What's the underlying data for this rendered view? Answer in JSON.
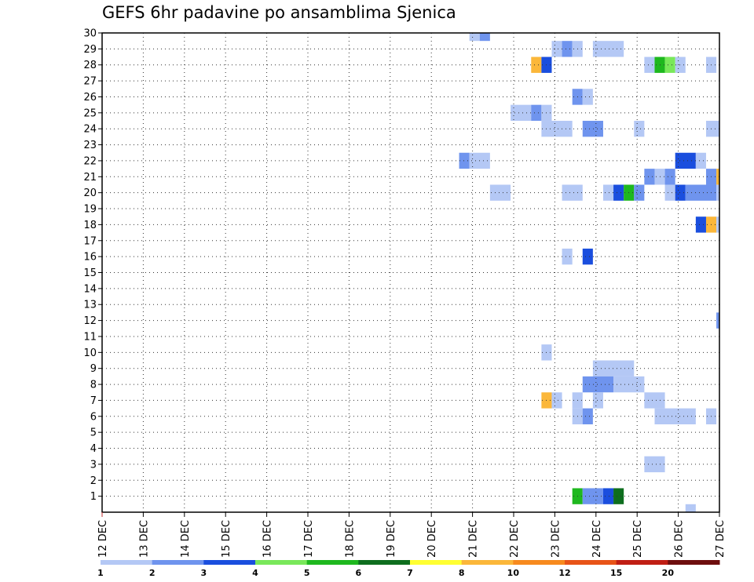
{
  "chart_data": {
    "type": "heatmap",
    "title": "GEFS 6hr padavine po ansamblima Sjenica",
    "xlabel": "",
    "ylabel": "",
    "x_tick_labels": [
      "12 DEC",
      "13 DEC",
      "14 DEC",
      "15 DEC",
      "16 DEC",
      "17 DEC",
      "18 DEC",
      "19 DEC",
      "20 DEC",
      "21 DEC",
      "22 DEC",
      "23 DEC",
      "24 DEC",
      "25 DEC",
      "26 DEC",
      "27 DEC"
    ],
    "x_unit": "6-hour steps from 12 DEC 00Z",
    "xlim": [
      0,
      60
    ],
    "y_tick_labels": [
      "1",
      "2",
      "3",
      "4",
      "5",
      "6",
      "7",
      "8",
      "9",
      "10",
      "11",
      "12",
      "13",
      "14",
      "15",
      "16",
      "17",
      "18",
      "19",
      "20",
      "21",
      "22",
      "23",
      "24",
      "25",
      "26",
      "27",
      "28",
      "29",
      "30"
    ],
    "ylim": [
      0,
      30
    ],
    "grid": "dotted",
    "colorbar": {
      "labels": [
        "1",
        "2",
        "3",
        "4",
        "5",
        "6",
        "7",
        "8",
        "10",
        "12",
        "15",
        "20"
      ],
      "colors": [
        "#b4c8f5",
        "#6f94ee",
        "#1a4ede",
        "#79e85a",
        "#1eb81e",
        "#0e6e1e",
        "#ffff32",
        "#fbb73a",
        "#f78a1e",
        "#e85418",
        "#c01e14",
        "#6e0e0e"
      ]
    },
    "cells": [
      {
        "member": 30,
        "start": 35.7,
        "end": 36.7,
        "color": "#b4c8f5"
      },
      {
        "member": 30,
        "start": 36.7,
        "end": 37.7,
        "color": "#6f94ee"
      },
      {
        "member": 29,
        "start": 43.7,
        "end": 44.7,
        "color": "#b4c8f5"
      },
      {
        "member": 29,
        "start": 44.7,
        "end": 45.7,
        "color": "#6f94ee"
      },
      {
        "member": 29,
        "start": 45.7,
        "end": 46.7,
        "color": "#b4c8f5"
      },
      {
        "member": 29,
        "start": 47.7,
        "end": 50.7,
        "color": "#b4c8f5"
      },
      {
        "member": 28,
        "start": 41.7,
        "end": 42.7,
        "color": "#fbb73a"
      },
      {
        "member": 28,
        "start": 42.7,
        "end": 43.7,
        "color": "#1a4ede"
      },
      {
        "member": 28,
        "start": 52.7,
        "end": 53.7,
        "color": "#b4c8f5"
      },
      {
        "member": 28,
        "start": 53.7,
        "end": 54.7,
        "color": "#1eb81e"
      },
      {
        "member": 28,
        "start": 54.7,
        "end": 55.7,
        "color": "#79e85a"
      },
      {
        "member": 28,
        "start": 55.7,
        "end": 56.7,
        "color": "#b4c8f5"
      },
      {
        "member": 28,
        "start": 58.7,
        "end": 59.7,
        "color": "#b4c8f5"
      },
      {
        "member": 26,
        "start": 45.7,
        "end": 46.7,
        "color": "#6f94ee"
      },
      {
        "member": 26,
        "start": 46.7,
        "end": 47.7,
        "color": "#b4c8f5"
      },
      {
        "member": 25,
        "start": 39.7,
        "end": 41.7,
        "color": "#b4c8f5"
      },
      {
        "member": 25,
        "start": 41.7,
        "end": 42.7,
        "color": "#6f94ee"
      },
      {
        "member": 25,
        "start": 42.7,
        "end": 43.7,
        "color": "#b4c8f5"
      },
      {
        "member": 24,
        "start": 42.7,
        "end": 45.7,
        "color": "#b4c8f5"
      },
      {
        "member": 24,
        "start": 46.7,
        "end": 48.7,
        "color": "#6f94ee"
      },
      {
        "member": 24,
        "start": 51.7,
        "end": 52.7,
        "color": "#b4c8f5"
      },
      {
        "member": 24,
        "start": 58.7,
        "end": 60,
        "color": "#b4c8f5"
      },
      {
        "member": 22,
        "start": 34.7,
        "end": 35.7,
        "color": "#6f94ee"
      },
      {
        "member": 22,
        "start": 35.7,
        "end": 37.7,
        "color": "#b4c8f5"
      },
      {
        "member": 22,
        "start": 55.7,
        "end": 57.7,
        "color": "#1a4ede"
      },
      {
        "member": 22,
        "start": 57.7,
        "end": 58.7,
        "color": "#b4c8f5"
      },
      {
        "member": 21,
        "start": 52.7,
        "end": 53.7,
        "color": "#6f94ee"
      },
      {
        "member": 21,
        "start": 53.7,
        "end": 54.7,
        "color": "#b4c8f5"
      },
      {
        "member": 21,
        "start": 54.7,
        "end": 55.7,
        "color": "#6f94ee"
      },
      {
        "member": 21,
        "start": 58.7,
        "end": 59.7,
        "color": "#6f94ee"
      },
      {
        "member": 21,
        "start": 59.7,
        "end": 60,
        "color": "#fbb73a"
      },
      {
        "member": 20,
        "start": 37.7,
        "end": 39.7,
        "color": "#b4c8f5"
      },
      {
        "member": 20,
        "start": 44.7,
        "end": 46.7,
        "color": "#b4c8f5"
      },
      {
        "member": 20,
        "start": 48.7,
        "end": 49.7,
        "color": "#b4c8f5"
      },
      {
        "member": 20,
        "start": 49.7,
        "end": 50.7,
        "color": "#1a4ede"
      },
      {
        "member": 20,
        "start": 50.7,
        "end": 51.7,
        "color": "#1eb81e"
      },
      {
        "member": 20,
        "start": 51.7,
        "end": 52.7,
        "color": "#6f94ee"
      },
      {
        "member": 20,
        "start": 54.7,
        "end": 55.7,
        "color": "#b4c8f5"
      },
      {
        "member": 20,
        "start": 55.7,
        "end": 56.7,
        "color": "#1a4ede"
      },
      {
        "member": 20,
        "start": 56.7,
        "end": 59.7,
        "color": "#6f94ee"
      },
      {
        "member": 20,
        "start": 59.7,
        "end": 60,
        "color": "#b4c8f5"
      },
      {
        "member": 18,
        "start": 57.7,
        "end": 58.7,
        "color": "#1a4ede"
      },
      {
        "member": 18,
        "start": 58.7,
        "end": 59.7,
        "color": "#fbb73a"
      },
      {
        "member": 18,
        "start": 59.7,
        "end": 60,
        "color": "#b4c8f5"
      },
      {
        "member": 16,
        "start": 44.7,
        "end": 45.7,
        "color": "#b4c8f5"
      },
      {
        "member": 16,
        "start": 46.7,
        "end": 47.7,
        "color": "#1a4ede"
      },
      {
        "member": 12,
        "start": 59.7,
        "end": 60,
        "color": "#6f94ee"
      },
      {
        "member": 10,
        "start": 42.7,
        "end": 43.7,
        "color": "#b4c8f5"
      },
      {
        "member": 9,
        "start": 47.7,
        "end": 51.7,
        "color": "#b4c8f5"
      },
      {
        "member": 8,
        "start": 46.7,
        "end": 49.7,
        "color": "#6f94ee"
      },
      {
        "member": 8,
        "start": 49.7,
        "end": 52.7,
        "color": "#b4c8f5"
      },
      {
        "member": 7,
        "start": 42.7,
        "end": 43.7,
        "color": "#fbb73a"
      },
      {
        "member": 7,
        "start": 43.7,
        "end": 44.7,
        "color": "#b4c8f5"
      },
      {
        "member": 7,
        "start": 45.7,
        "end": 46.7,
        "color": "#b4c8f5"
      },
      {
        "member": 7,
        "start": 47.7,
        "end": 48.7,
        "color": "#b4c8f5"
      },
      {
        "member": 7,
        "start": 52.7,
        "end": 54.7,
        "color": "#b4c8f5"
      },
      {
        "member": 6,
        "start": 45.7,
        "end": 46.7,
        "color": "#b4c8f5"
      },
      {
        "member": 6,
        "start": 46.7,
        "end": 47.7,
        "color": "#6f94ee"
      },
      {
        "member": 6,
        "start": 53.7,
        "end": 57.7,
        "color": "#b4c8f5"
      },
      {
        "member": 6,
        "start": 58.7,
        "end": 59.7,
        "color": "#b4c8f5"
      },
      {
        "member": 3,
        "start": 52.7,
        "end": 54.7,
        "color": "#b4c8f5"
      },
      {
        "member": 1,
        "start": 45.7,
        "end": 46.7,
        "color": "#1eb81e"
      },
      {
        "member": 1,
        "start": 46.7,
        "end": 48.7,
        "color": "#6f94ee"
      },
      {
        "member": 1,
        "start": 48.7,
        "end": 49.7,
        "color": "#1a4ede"
      },
      {
        "member": 1,
        "start": 49.7,
        "end": 50.7,
        "color": "#0e6e1e"
      },
      {
        "member": 0,
        "start": 56.7,
        "end": 57.7,
        "color": "#b4c8f5"
      }
    ]
  }
}
